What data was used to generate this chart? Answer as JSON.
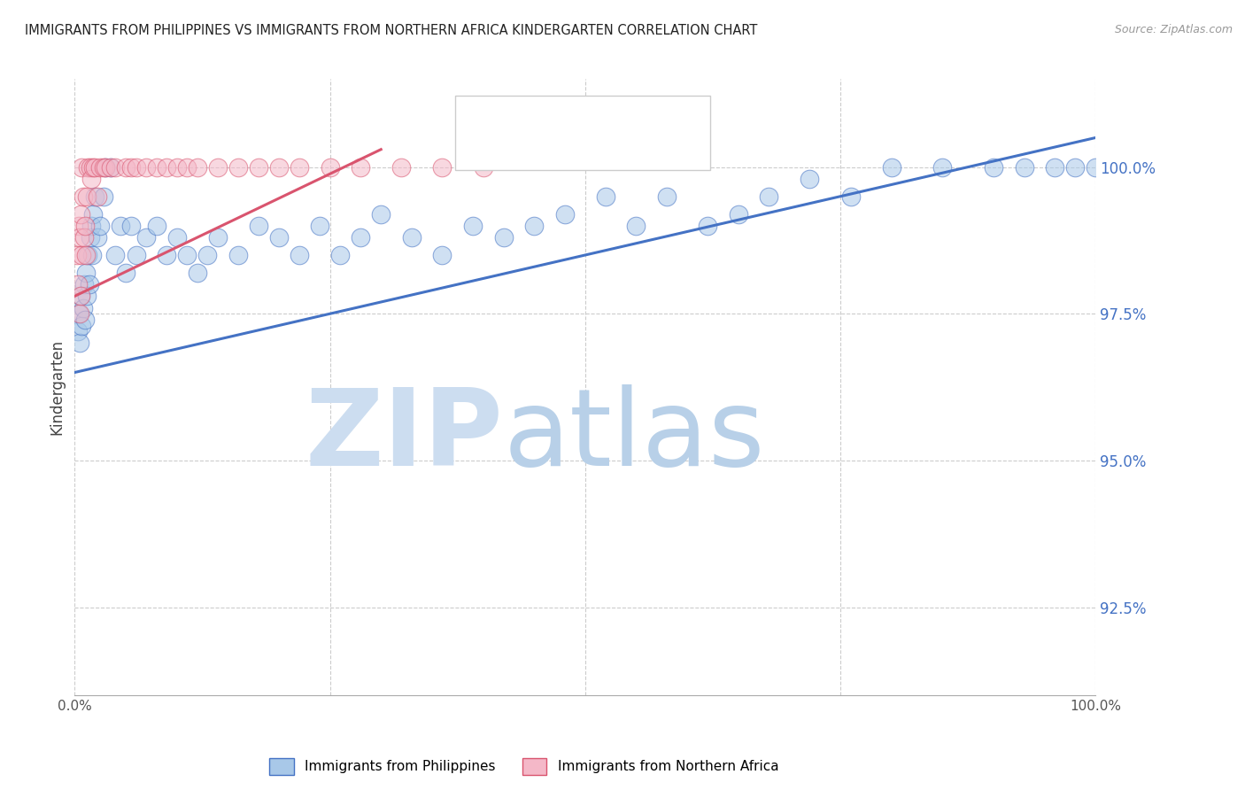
{
  "title": "IMMIGRANTS FROM PHILIPPINES VS IMMIGRANTS FROM NORTHERN AFRICA KINDERGARTEN CORRELATION CHART",
  "source": "Source: ZipAtlas.com",
  "ylabel": "Kindergarten",
  "xlim": [
    0,
    100
  ],
  "ylim": [
    91.0,
    101.5
  ],
  "yticks": [
    92.5,
    95.0,
    97.5,
    100.0
  ],
  "xticks": [
    0,
    25,
    50,
    75,
    100
  ],
  "legend_label1": "Immigrants from Philippines",
  "legend_label2": "Immigrants from Northern Africa",
  "color_blue": "#a8c8e8",
  "color_pink": "#f4b8c8",
  "line_blue": "#4472c4",
  "line_pink": "#d9546e",
  "watermark_zip_color": "#ccddf0",
  "watermark_atlas_color": "#b8d0e8",
  "blue_line_x0": 0,
  "blue_line_y0": 96.5,
  "blue_line_x1": 100,
  "blue_line_y1": 100.5,
  "pink_line_x0": 0,
  "pink_line_y0": 97.8,
  "pink_line_x1": 30,
  "pink_line_y1": 100.3,
  "phil_x": [
    0.3,
    0.4,
    0.5,
    0.6,
    0.7,
    0.8,
    0.9,
    1.0,
    1.1,
    1.2,
    1.3,
    1.4,
    1.5,
    1.6,
    1.7,
    1.8,
    2.0,
    2.2,
    2.5,
    2.8,
    3.0,
    3.5,
    4.0,
    4.5,
    5.0,
    5.5,
    6.0,
    7.0,
    8.0,
    9.0,
    10.0,
    11.0,
    12.0,
    13.0,
    14.0,
    16.0,
    18.0,
    20.0,
    22.0,
    24.0,
    26.0,
    28.0,
    30.0,
    33.0,
    36.0,
    39.0,
    42.0,
    45.0,
    48.0,
    52.0,
    55.0,
    58.0,
    62.0,
    65.0,
    68.0,
    72.0,
    76.0,
    80.0,
    85.0,
    90.0,
    93.0,
    96.0,
    98.0,
    100.0
  ],
  "phil_y": [
    97.2,
    97.5,
    97.0,
    97.8,
    97.3,
    97.6,
    98.0,
    97.4,
    98.2,
    97.8,
    98.5,
    98.0,
    98.8,
    99.0,
    98.5,
    99.2,
    99.5,
    98.8,
    99.0,
    99.5,
    100.0,
    100.0,
    98.5,
    99.0,
    98.2,
    99.0,
    98.5,
    98.8,
    99.0,
    98.5,
    98.8,
    98.5,
    98.2,
    98.5,
    98.8,
    98.5,
    99.0,
    98.8,
    98.5,
    99.0,
    98.5,
    98.8,
    99.2,
    98.8,
    98.5,
    99.0,
    98.8,
    99.0,
    99.2,
    99.5,
    99.0,
    99.5,
    99.0,
    99.2,
    99.5,
    99.8,
    99.5,
    100.0,
    100.0,
    100.0,
    100.0,
    100.0,
    100.0,
    100.0
  ],
  "nafr_x": [
    0.2,
    0.3,
    0.4,
    0.5,
    0.5,
    0.6,
    0.6,
    0.7,
    0.7,
    0.8,
    0.9,
    1.0,
    1.1,
    1.2,
    1.3,
    1.5,
    1.6,
    1.8,
    2.0,
    2.2,
    2.5,
    2.8,
    3.0,
    3.5,
    4.0,
    5.0,
    5.5,
    6.0,
    7.0,
    8.0,
    9.0,
    10.0,
    11.0,
    12.0,
    14.0,
    16.0,
    18.0,
    20.0,
    22.0,
    25.0,
    28.0,
    32.0,
    36.0,
    40.0
  ],
  "nafr_y": [
    98.5,
    98.0,
    99.0,
    97.5,
    98.8,
    97.8,
    99.2,
    98.5,
    100.0,
    99.5,
    98.8,
    99.0,
    98.5,
    99.5,
    100.0,
    100.0,
    99.8,
    100.0,
    100.0,
    99.5,
    100.0,
    100.0,
    100.0,
    100.0,
    100.0,
    100.0,
    100.0,
    100.0,
    100.0,
    100.0,
    100.0,
    100.0,
    100.0,
    100.0,
    100.0,
    100.0,
    100.0,
    100.0,
    100.0,
    100.0,
    100.0,
    100.0,
    100.0,
    100.0
  ]
}
